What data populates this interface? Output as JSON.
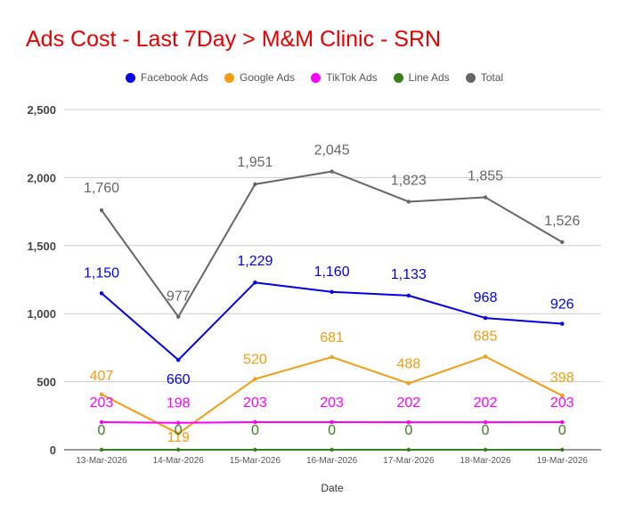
{
  "chart_data": {
    "type": "line",
    "title": "Ads Cost - Last 7Day > M&M Clinic - SRN",
    "xlabel": "Date",
    "ylabel": "",
    "ylim": [
      0,
      2500
    ],
    "yticks": [
      0,
      500,
      1000,
      1500,
      2000,
      2500
    ],
    "ytick_labels": [
      "0",
      "500",
      "1,000",
      "1,500",
      "2,000",
      "2,500"
    ],
    "grid": true,
    "legend_position": "top",
    "categories": [
      "13-Mar-2026",
      "14-Mar-2026",
      "15-Mar-2026",
      "16-Mar-2026",
      "17-Mar-2026",
      "18-Mar-2026",
      "19-Mar-2026"
    ],
    "series": [
      {
        "name": "Facebook Ads",
        "color": "#0000e6",
        "values": [
          1150,
          660,
          1229,
          1160,
          1133,
          968,
          926
        ],
        "labels": [
          "1,150",
          "660",
          "1,229",
          "1,160",
          "1,133",
          "968",
          "926"
        ]
      },
      {
        "name": "Google Ads",
        "color": "#f39c12",
        "values": [
          407,
          119,
          520,
          681,
          488,
          685,
          398
        ],
        "labels": [
          "407",
          "119",
          "520",
          "681",
          "488",
          "685",
          "398"
        ]
      },
      {
        "name": "TikTok Ads",
        "color": "#ff00ff",
        "values": [
          203,
          198,
          203,
          203,
          202,
          202,
          203
        ],
        "labels": [
          "203",
          "198",
          "203",
          "203",
          "202",
          "202",
          "203"
        ]
      },
      {
        "name": "Line Ads",
        "color": "#3a7d1e",
        "values": [
          0,
          0,
          0,
          0,
          0,
          0,
          0
        ],
        "labels": [
          "0",
          "0",
          "0",
          "0",
          "0",
          "0",
          "0"
        ]
      },
      {
        "name": "Total",
        "color": "#666666",
        "values": [
          1760,
          977,
          1951,
          2045,
          1823,
          1855,
          1526
        ],
        "labels": [
          "1,760",
          "977",
          "1,951",
          "2,045",
          "1,823",
          "1,855",
          "1,526"
        ]
      }
    ]
  }
}
